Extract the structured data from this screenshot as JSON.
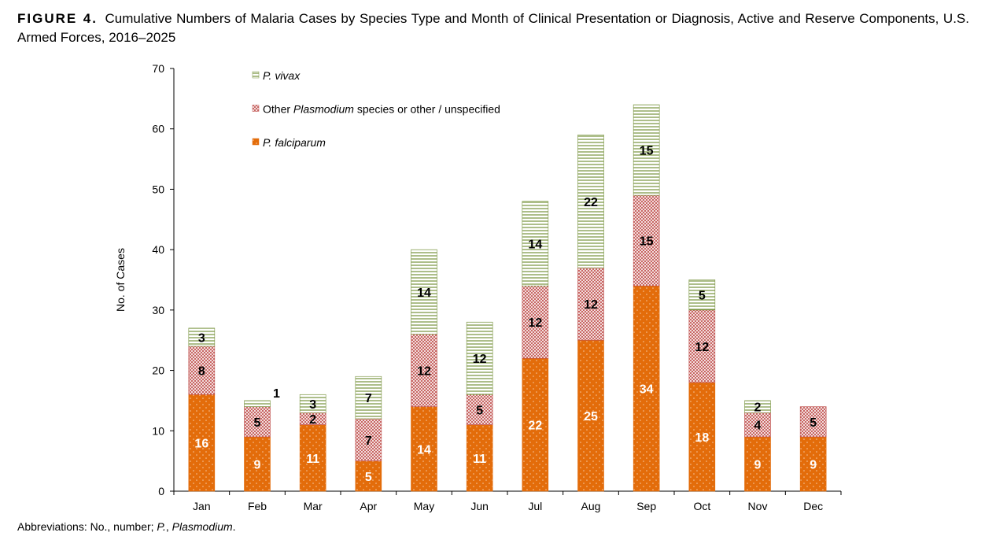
{
  "title": {
    "figure_label": "FIGURE 4.",
    "text": "Cumulative Numbers of Malaria Cases by Species Type and Month of Clinical Presentation or Diagnosis, Active and Reserve Components, U.S. Armed Forces, 2016–2025"
  },
  "footnote": {
    "prefix": "Abbreviations: No., number; ",
    "italic_part": "P.",
    "middle": ", ",
    "italic_part2": "Plasmodium",
    "suffix": "."
  },
  "colors": {
    "falciparum": "#E36C0A",
    "other": "#C0504D",
    "vivax": "#77933C"
  },
  "chart_data": {
    "type": "bar",
    "stacked": true,
    "categories": [
      "Jan",
      "Feb",
      "Mar",
      "Apr",
      "May",
      "Jun",
      "Jul",
      "Aug",
      "Sep",
      "Oct",
      "Nov",
      "Dec"
    ],
    "series": [
      {
        "name": "P. falciparum",
        "values": [
          16,
          9,
          11,
          5,
          14,
          11,
          22,
          25,
          34,
          18,
          9,
          9
        ]
      },
      {
        "name": "Other Plasmodium species or other / unspecified",
        "values": [
          8,
          5,
          2,
          7,
          12,
          5,
          12,
          12,
          15,
          12,
          4,
          5
        ]
      },
      {
        "name": "P. vivax",
        "values": [
          3,
          1,
          3,
          7,
          14,
          12,
          14,
          22,
          15,
          5,
          2,
          0
        ]
      }
    ],
    "ylabel": "No. of Cases",
    "xlabel": "",
    "ylim": [
      0,
      70
    ],
    "yticks": [
      0,
      10,
      20,
      30,
      40,
      50,
      60,
      70
    ],
    "grid": false,
    "legend_position": "top-left"
  }
}
